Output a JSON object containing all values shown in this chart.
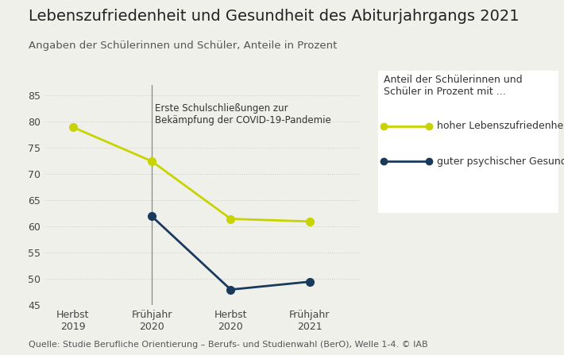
{
  "title": "Lebenszufriedenheit und Gesundheit des Abiturjahrgangs 2021",
  "subtitle": "Angaben der Schülerinnen und Schüler, Anteile in Prozent",
  "x_labels": [
    "Herbst\n2019",
    "Frühjahr\n2020",
    "Herbst\n2020",
    "Frühjahr\n2021"
  ],
  "x_positions": [
    0,
    1,
    2,
    3
  ],
  "series": [
    {
      "name": "hoher Lebenszufriedenheit",
      "values": [
        79,
        72.5,
        61.5,
        61
      ],
      "color": "#c8d400",
      "marker": "o",
      "linewidth": 2.0
    },
    {
      "name": "guter psychischer Gesundheit",
      "values": [
        null,
        62,
        48,
        49.5
      ],
      "color": "#1a3a5c",
      "marker": "o",
      "linewidth": 2.0
    }
  ],
  "ylim": [
    45,
    87
  ],
  "yticks": [
    45,
    50,
    55,
    60,
    65,
    70,
    75,
    80,
    85
  ],
  "vline_x": 1,
  "vline_label_line1": "Erste Schulschließungen zur",
  "vline_label_line2": "Bekämpfung der COVID-19-Pandemie",
  "legend_title": "Anteil der Schülerinnen und\nSchüler in Prozent mit ...",
  "source": "Quelle: Studie Berufliche Orientierung – Berufs- und Studienwahl (BerO), Welle 1-4. © IAB",
  "bg_color": "#f0f0eb",
  "plot_bg_color": "#f0f0eb",
  "legend_bg_color": "#ffffff",
  "title_fontsize": 14,
  "subtitle_fontsize": 9.5,
  "source_fontsize": 8,
  "axis_fontsize": 9,
  "legend_fontsize": 9,
  "annotation_fontsize": 8.5,
  "grid_color": "#cccccc",
  "grid_style": ":"
}
